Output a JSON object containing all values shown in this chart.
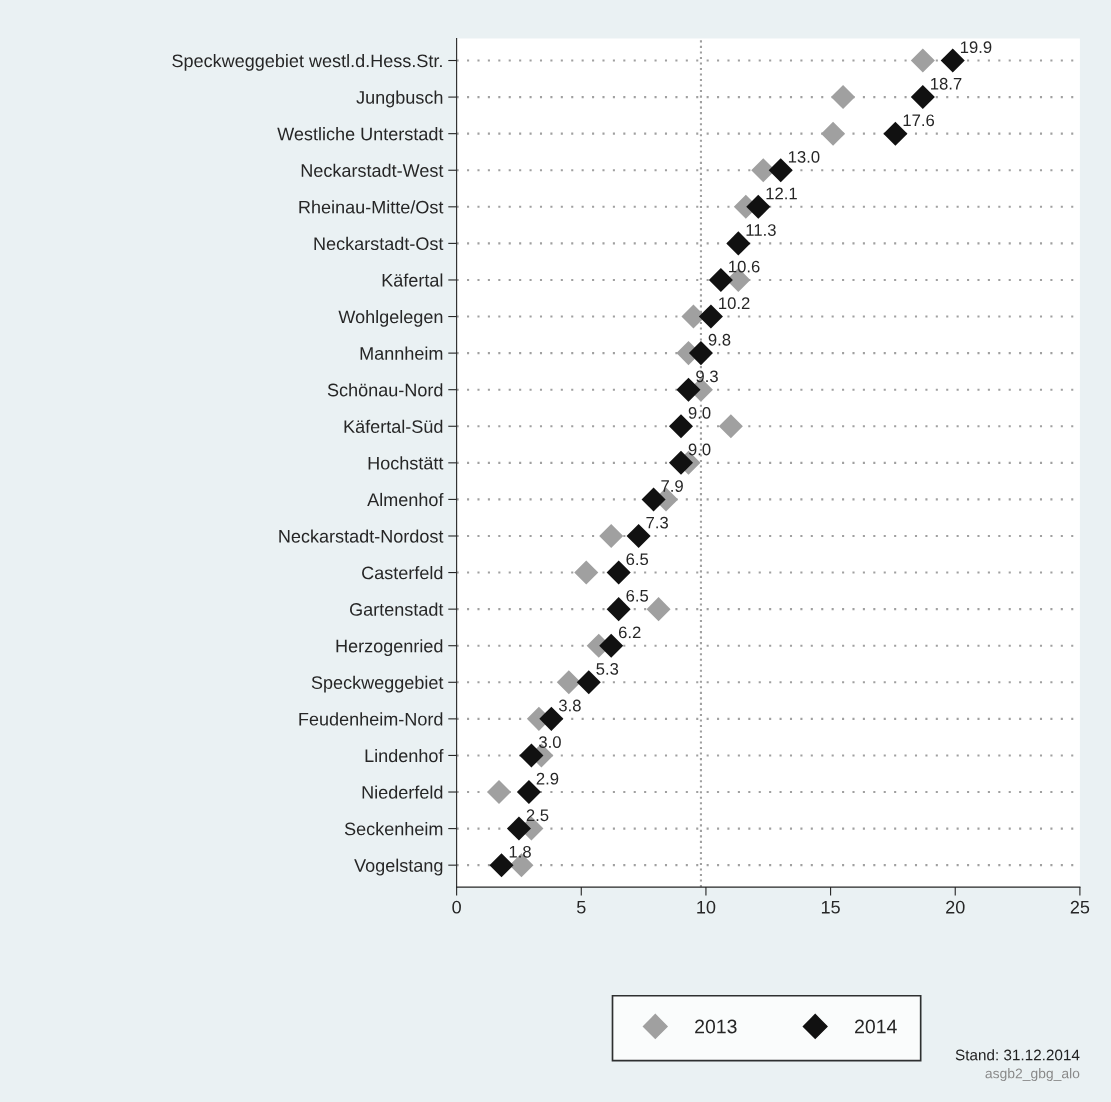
{
  "chart_data": {
    "type": "scatter",
    "orientation": "horizontal",
    "categories": [
      "Speckweggebiet westl.d.Hess.Str.",
      "Jungbusch",
      "Westliche Unterstadt",
      "Neckarstadt-West",
      "Rheinau-Mitte/Ost",
      "Neckarstadt-Ost",
      "Käfertal",
      "Wohlgelegen",
      "Mannheim",
      "Schönau-Nord",
      "Käfertal-Süd",
      "Hochstätt",
      "Almenhof",
      "Neckarstadt-Nordost",
      "Casterfeld",
      "Gartenstadt",
      "Herzogenried",
      "Speckweggebiet",
      "Feudenheim-Nord",
      "Lindenhof",
      "Niederfeld",
      "Seckenheim",
      "Vogelstang"
    ],
    "series": [
      {
        "name": "2013",
        "color": "#a0a0a0",
        "values": [
          18.7,
          15.5,
          15.1,
          12.3,
          11.6,
          null,
          11.3,
          9.5,
          9.3,
          9.8,
          11.0,
          9.3,
          8.4,
          6.2,
          5.2,
          8.1,
          5.7,
          4.5,
          3.3,
          3.4,
          1.7,
          3.0,
          2.6
        ]
      },
      {
        "name": "2014",
        "color": "#111111",
        "values": [
          19.9,
          18.7,
          17.6,
          13.0,
          12.1,
          11.3,
          10.6,
          10.2,
          9.8,
          9.3,
          9.0,
          9.0,
          7.9,
          7.3,
          6.5,
          6.5,
          6.2,
          5.3,
          3.8,
          3.0,
          2.9,
          2.5,
          1.8
        ],
        "value_labels": [
          "19.9",
          "18.7",
          "17.6",
          "13.0",
          "12.1",
          "11.3",
          "10.6",
          "10.2",
          "9.8",
          "9.3",
          "9.0",
          "9.0",
          "7.9",
          "7.3",
          "6.5",
          "6.5",
          "6.2",
          "5.3",
          "3.8",
          "3.0",
          "2.9",
          "2.5",
          "1.8"
        ]
      }
    ],
    "xlim": [
      0,
      25
    ],
    "xticks": [
      0,
      5,
      10,
      15,
      20,
      25
    ],
    "ref_lines": [
      {
        "axis": "x",
        "value": 9.8,
        "color": "#a0a0a0",
        "line_style": "dotted"
      }
    ],
    "grid": "y",
    "marker": "diamond",
    "legend": "bottom",
    "annotations": [
      "Stand: 31.12.2014",
      "asgb2_gbg_alo"
    ]
  }
}
